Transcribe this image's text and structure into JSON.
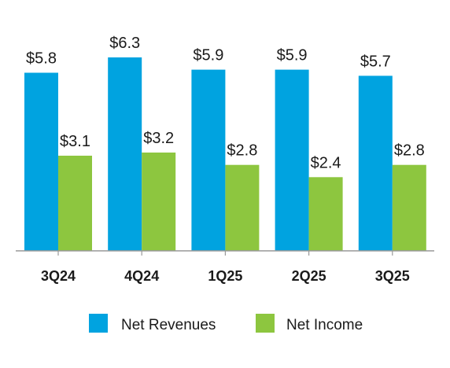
{
  "chart_data": {
    "type": "bar",
    "categories": [
      "3Q24",
      "4Q24",
      "1Q25",
      "2Q25",
      "3Q25"
    ],
    "series": [
      {
        "name": "Net Revenues",
        "values": [
          5.8,
          6.3,
          5.9,
          5.9,
          5.7
        ],
        "labels": [
          "$5.8",
          "$6.3",
          "$5.9",
          "$5.9",
          "$5.7"
        ],
        "color": "#00A3E0"
      },
      {
        "name": "Net Income",
        "values": [
          3.1,
          3.2,
          2.8,
          2.4,
          2.8
        ],
        "labels": [
          "$3.1",
          "$3.2",
          "$2.8",
          "$2.4",
          "$2.8"
        ],
        "color": "#8DC63F"
      }
    ],
    "ylim": [
      0,
      6.3
    ],
    "grid": false,
    "legend_position": "bottom-center"
  }
}
